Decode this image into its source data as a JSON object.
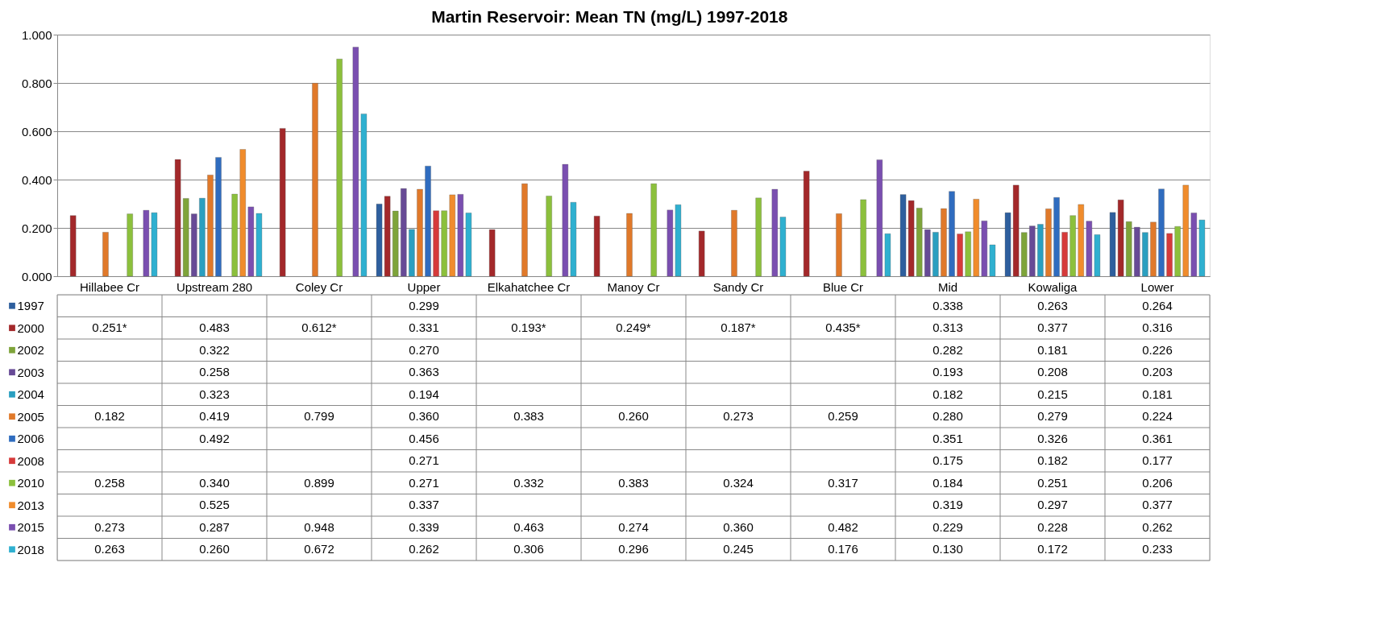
{
  "chart_data": {
    "type": "bar",
    "title": "Martin  Reservoir: Mean TN (mg/L) 1997-2018",
    "categories": [
      "Hillabee Cr",
      "Upstream 280",
      "Coley Cr",
      "Upper",
      "Elkahatchee Cr",
      "Manoy Cr",
      "Sandy Cr",
      "Blue Cr",
      "Mid",
      "Kowaliga",
      "Lower"
    ],
    "ylim": [
      0,
      1
    ],
    "yticks": [
      {
        "value": 0,
        "label": "0.000"
      },
      {
        "value": 0.2,
        "label": "0.200"
      },
      {
        "value": 0.4,
        "label": "0.400"
      },
      {
        "value": 0.6,
        "label": "0.600"
      },
      {
        "value": 0.8,
        "label": "0.800"
      },
      {
        "value": 1,
        "label": "1.000"
      }
    ],
    "grid": "y",
    "legend": "left",
    "series": [
      {
        "name": "1997",
        "color": "#2e5f9e",
        "values": [
          null,
          null,
          null,
          0.299,
          null,
          null,
          null,
          null,
          0.338,
          0.263,
          0.264
        ],
        "value_labels": [
          null,
          null,
          null,
          "0.299",
          null,
          null,
          null,
          null,
          "0.338",
          "0.263",
          "0.264"
        ]
      },
      {
        "name": "2000",
        "color": "#a3282a",
        "values": [
          0.251,
          0.483,
          0.612,
          0.331,
          0.193,
          0.249,
          0.187,
          0.435,
          0.313,
          0.377,
          0.316
        ],
        "value_labels": [
          "0.251*",
          "0.483",
          "0.612*",
          "0.331",
          "0.193*",
          "0.249*",
          "0.187*",
          "0.435*",
          "0.313",
          "0.377",
          "0.316"
        ]
      },
      {
        "name": "2002",
        "color": "#7ea43a",
        "values": [
          null,
          0.322,
          null,
          0.27,
          null,
          null,
          null,
          null,
          0.282,
          0.181,
          0.226
        ],
        "value_labels": [
          null,
          "0.322",
          null,
          "0.270",
          null,
          null,
          null,
          null,
          "0.282",
          "0.181",
          "0.226"
        ]
      },
      {
        "name": "2003",
        "color": "#674a96",
        "values": [
          null,
          0.258,
          null,
          0.363,
          null,
          null,
          null,
          null,
          0.193,
          0.208,
          0.203
        ],
        "value_labels": [
          null,
          "0.258",
          null,
          "0.363",
          null,
          null,
          null,
          null,
          "0.193",
          "0.208",
          "0.203"
        ]
      },
      {
        "name": "2004",
        "color": "#2a9fc0",
        "values": [
          null,
          0.323,
          null,
          0.194,
          null,
          null,
          null,
          null,
          0.182,
          0.215,
          0.181
        ],
        "value_labels": [
          null,
          "0.323",
          null,
          "0.194",
          null,
          null,
          null,
          null,
          "0.182",
          "0.215",
          "0.181"
        ]
      },
      {
        "name": "2005",
        "color": "#e0792a",
        "values": [
          0.182,
          0.419,
          0.799,
          0.36,
          0.383,
          0.26,
          0.273,
          0.259,
          0.28,
          0.279,
          0.224
        ],
        "value_labels": [
          "0.182",
          "0.419",
          "0.799",
          "0.360",
          "0.383",
          "0.260",
          "0.273",
          "0.259",
          "0.280",
          "0.279",
          "0.224"
        ]
      },
      {
        "name": "2006",
        "color": "#2f6cbf",
        "values": [
          null,
          0.492,
          null,
          0.456,
          null,
          null,
          null,
          null,
          0.351,
          0.326,
          0.361
        ],
        "value_labels": [
          null,
          "0.492",
          null,
          "0.456",
          null,
          null,
          null,
          null,
          "0.351",
          "0.326",
          "0.361"
        ]
      },
      {
        "name": "2008",
        "color": "#d63a3a",
        "values": [
          null,
          null,
          null,
          0.271,
          null,
          null,
          null,
          null,
          0.175,
          0.182,
          0.177
        ],
        "value_labels": [
          null,
          null,
          null,
          "0.271",
          null,
          null,
          null,
          null,
          "0.175",
          "0.182",
          "0.177"
        ]
      },
      {
        "name": "2010",
        "color": "#8cc03c",
        "values": [
          0.258,
          0.34,
          0.899,
          0.271,
          0.332,
          0.383,
          0.324,
          0.317,
          0.184,
          0.251,
          0.206
        ],
        "value_labels": [
          "0.258",
          "0.340",
          "0.899",
          "0.271",
          "0.332",
          "0.383",
          "0.324",
          "0.317",
          "0.184",
          "0.251",
          "0.206"
        ]
      },
      {
        "name": "2013",
        "color": "#f08c2c",
        "values": [
          null,
          0.525,
          null,
          0.337,
          null,
          null,
          null,
          null,
          0.319,
          0.297,
          0.377
        ],
        "value_labels": [
          null,
          "0.525",
          null,
          "0.337",
          null,
          null,
          null,
          null,
          "0.319",
          "0.297",
          "0.377"
        ]
      },
      {
        "name": "2015",
        "color": "#7a4fb0",
        "values": [
          0.273,
          0.287,
          0.948,
          0.339,
          0.463,
          0.274,
          0.36,
          0.482,
          0.229,
          0.228,
          0.262
        ],
        "value_labels": [
          "0.273",
          "0.287",
          "0.948",
          "0.339",
          "0.463",
          "0.274",
          "0.360",
          "0.482",
          "0.229",
          "0.228",
          "0.262"
        ]
      },
      {
        "name": "2018",
        "color": "#2fb0d0",
        "values": [
          0.263,
          0.26,
          0.672,
          0.262,
          0.306,
          0.296,
          0.245,
          0.176,
          0.13,
          0.172,
          0.233
        ],
        "value_labels": [
          "0.263",
          "0.260",
          "0.672",
          "0.262",
          "0.306",
          "0.296",
          "0.245",
          "0.176",
          "0.130",
          "0.172",
          "0.233"
        ]
      }
    ]
  }
}
